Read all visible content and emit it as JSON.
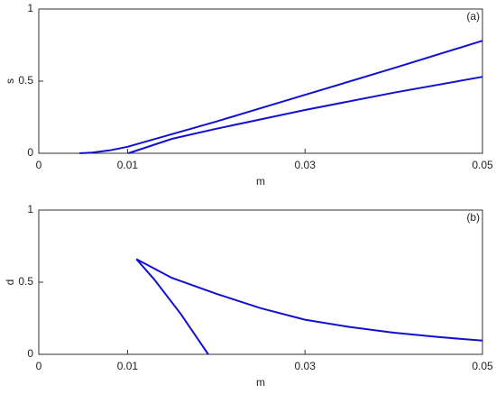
{
  "chart_data": [
    {
      "type": "line",
      "annotation": "(a)",
      "xlabel": "m",
      "ylabel": "s",
      "xlim": [
        0,
        0.05
      ],
      "xticks": [
        0,
        0.01,
        0.03,
        0.05
      ],
      "ylim": [
        0,
        1
      ],
      "yticks": [
        0,
        0.5,
        1
      ],
      "series": [
        {
          "color": "#1010d0",
          "x": [
            0.0046,
            0.006,
            0.008,
            0.01,
            0.02,
            0.03,
            0.04,
            0.05
          ],
          "values": [
            0,
            0.005,
            0.02,
            0.045,
            0.22,
            0.405,
            0.59,
            0.78
          ]
        },
        {
          "color": "#1010d0",
          "x": [
            0.0101,
            0.015,
            0.02,
            0.03,
            0.04,
            0.05
          ],
          "values": [
            0,
            0.1,
            0.17,
            0.3,
            0.42,
            0.53
          ]
        }
      ]
    },
    {
      "type": "line",
      "annotation": "(b)",
      "xlabel": "m",
      "ylabel": "d",
      "xlim": [
        0,
        0.05
      ],
      "xticks": [
        0,
        0.01,
        0.03,
        0.05
      ],
      "ylim": [
        0,
        1
      ],
      "yticks": [
        0,
        0.5,
        1
      ],
      "series": [
        {
          "color": "#1010d0",
          "x": [
            0.011,
            0.015,
            0.02,
            0.025,
            0.03,
            0.035,
            0.04,
            0.045,
            0.05
          ],
          "values": [
            0.66,
            0.53,
            0.42,
            0.32,
            0.24,
            0.19,
            0.15,
            0.12,
            0.095
          ]
        },
        {
          "color": "#1010d0",
          "x": [
            0.011,
            0.013,
            0.016,
            0.0191
          ],
          "values": [
            0.66,
            0.52,
            0.28,
            0
          ]
        }
      ]
    }
  ]
}
